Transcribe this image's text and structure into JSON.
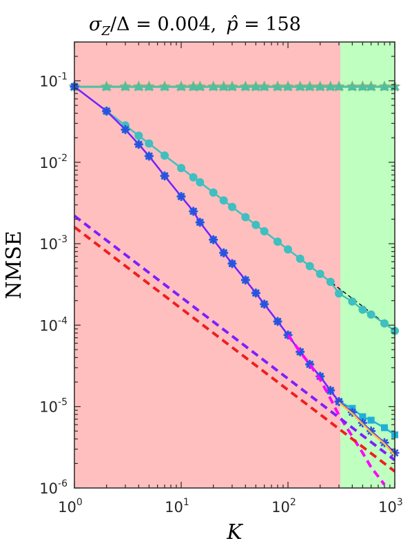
{
  "chart_data": {
    "type": "line",
    "title": "σ_Z/Δ = 0.004,  p̂ = 158",
    "title_parts": {
      "sigma": "σ",
      "sigma_sub": "Z",
      "ratio": "/Δ = 0.004,",
      "p_hat": "p̂",
      "p_value": " = 158"
    },
    "xlabel": "K",
    "ylabel": "NMSE",
    "xscale": "log",
    "yscale": "log",
    "xlim": [
      1,
      1000
    ],
    "ylim": [
      1e-06,
      0.3
    ],
    "x_ticks": [
      {
        "base": "10",
        "exp": "0"
      },
      {
        "base": "10",
        "exp": "1"
      },
      {
        "base": "10",
        "exp": "2"
      },
      {
        "base": "10",
        "exp": "3"
      }
    ],
    "y_ticks": [
      {
        "base": "10",
        "exp": "-6"
      },
      {
        "base": "10",
        "exp": "-5"
      },
      {
        "base": "10",
        "exp": "-4"
      },
      {
        "base": "10",
        "exp": "-3"
      },
      {
        "base": "10",
        "exp": "-2"
      },
      {
        "base": "10",
        "exp": "-1"
      }
    ],
    "regions": [
      {
        "x_range": [
          1,
          310
        ],
        "color": "#ffbfbf"
      },
      {
        "x_range": [
          310,
          1000
        ],
        "color": "#bfffbf"
      }
    ],
    "series": [
      {
        "style": "solid",
        "color": "#4fbfa0",
        "marker": "star",
        "marker_color": "#8fb27a",
        "x": [
          1,
          2,
          3,
          4,
          5,
          7,
          10,
          13,
          15,
          20,
          25,
          30,
          40,
          50,
          60,
          80,
          100,
          130,
          160,
          200,
          250,
          300,
          400,
          500,
          600,
          800,
          1000
        ],
        "y": [
          0.085,
          0.085,
          0.085,
          0.085,
          0.085,
          0.085,
          0.085,
          0.085,
          0.085,
          0.085,
          0.085,
          0.085,
          0.085,
          0.085,
          0.085,
          0.085,
          0.085,
          0.085,
          0.085,
          0.085,
          0.085,
          0.085,
          0.085,
          0.085,
          0.085,
          0.085,
          0.085
        ]
      },
      {
        "style": "solid",
        "color": "#4fbfa0",
        "marker": "triangle",
        "marker_color": "#4fbfa0",
        "x": [
          1,
          2,
          3,
          4,
          5,
          7,
          10,
          13,
          15,
          20,
          25,
          30,
          40,
          50,
          60,
          80,
          100,
          130,
          160,
          200,
          250,
          300,
          400,
          500,
          600,
          800,
          1000
        ],
        "y": [
          0.084,
          0.084,
          0.084,
          0.084,
          0.084,
          0.084,
          0.084,
          0.084,
          0.084,
          0.084,
          0.084,
          0.084,
          0.084,
          0.084,
          0.084,
          0.084,
          0.084,
          0.084,
          0.084,
          0.084,
          0.084,
          0.084,
          0.084,
          0.084,
          0.084,
          0.084,
          0.084
        ]
      },
      {
        "style": "dashed",
        "color": "#000000",
        "x": [
          1,
          1000
        ],
        "y": [
          0.085,
          8.5e-05
        ]
      },
      {
        "style": "solid",
        "color": "#3fbfbf",
        "marker": "circle",
        "marker_color": "#3fbfbf",
        "x": [
          1,
          2,
          3,
          4,
          5,
          7,
          10,
          13,
          15,
          20,
          25,
          30,
          40,
          50,
          60,
          80,
          100,
          130,
          160,
          200,
          250,
          300,
          400,
          500,
          600,
          800,
          1000
        ],
        "y": [
          0.085,
          0.0425,
          0.0283,
          0.0212,
          0.017,
          0.0121,
          0.0085,
          0.00654,
          0.00567,
          0.00425,
          0.0034,
          0.00283,
          0.00212,
          0.0017,
          0.00142,
          0.00106,
          0.00085,
          0.000654,
          0.000531,
          0.000425,
          0.00034,
          0.000245,
          0.000195,
          0.000155,
          0.000135,
          0.000105,
          8.5e-05
        ]
      },
      {
        "style": "solid",
        "color": "#1fb0d8",
        "marker": "square",
        "marker_color": "#1fb0d8",
        "x": [
          1,
          2,
          3,
          4,
          5,
          7,
          10,
          13,
          15,
          20,
          25,
          30,
          40,
          50,
          60,
          80,
          100,
          130,
          160,
          200,
          250,
          300,
          400,
          500,
          600,
          800,
          1000
        ],
        "y": [
          0.085,
          0.0425,
          0.0252,
          0.0166,
          0.0119,
          0.0068,
          0.0038,
          0.0025,
          0.00183,
          0.00112,
          0.000772,
          0.00057,
          0.000358,
          0.000248,
          0.000181,
          0.000111,
          7.56e-05,
          4.7e-05,
          3.3e-05,
          2.35e-05,
          1.55e-05,
          1.15e-05,
          9.5e-06,
          7.5e-06,
          6.8e-06,
          5.5e-06,
          4.5e-06
        ]
      },
      {
        "style": "solid",
        "color": "#7f1fff",
        "marker": "asterisk",
        "marker_color": "#2f4fdf",
        "x": [
          1,
          2,
          3,
          4,
          5,
          7,
          10,
          13,
          15,
          20,
          25,
          30,
          40,
          50,
          60,
          80,
          100,
          130,
          160,
          200,
          250,
          300,
          400,
          500,
          600,
          800,
          1000
        ],
        "y": [
          0.085,
          0.0425,
          0.0252,
          0.0166,
          0.0119,
          0.0068,
          0.0038,
          0.0025,
          0.00183,
          0.00112,
          0.000772,
          0.00057,
          0.000358,
          0.000248,
          0.000181,
          0.000111,
          7.56e-05,
          4.7e-05,
          3.3e-05,
          2.35e-05,
          1.58e-05,
          1.15e-05,
          8.5e-06,
          6.3e-06,
          5e-06,
          3.6e-06,
          2.7e-06
        ]
      },
      {
        "style": "solid",
        "color": "#ffbf3f",
        "x": [
          300,
          400,
          500,
          600,
          800,
          1000
        ],
        "y": [
          1.12e-05,
          8.2e-06,
          6.1e-06,
          4.8e-06,
          3.5e-06,
          2.5e-06
        ]
      },
      {
        "style": "dashed",
        "color": "#ff00ff",
        "x": [
          100,
          130,
          160,
          200,
          250,
          300,
          400,
          500,
          600,
          800
        ],
        "y": [
          7.56e-05,
          4.7e-05,
          3.3e-05,
          2.15e-05,
          1.25e-05,
          7.8e-06,
          4.3e-06,
          2.7e-06,
          1.8e-06,
          1.1e-06
        ]
      },
      {
        "style": "dashed",
        "color": "#7f1fff",
        "x": [
          1,
          1000
        ],
        "y": [
          0.0022,
          2.2e-06
        ]
      },
      {
        "style": "dashed",
        "color": "#ef1f1f",
        "x": [
          1,
          1000
        ],
        "y": [
          0.0016,
          1.6e-06
        ]
      }
    ]
  }
}
